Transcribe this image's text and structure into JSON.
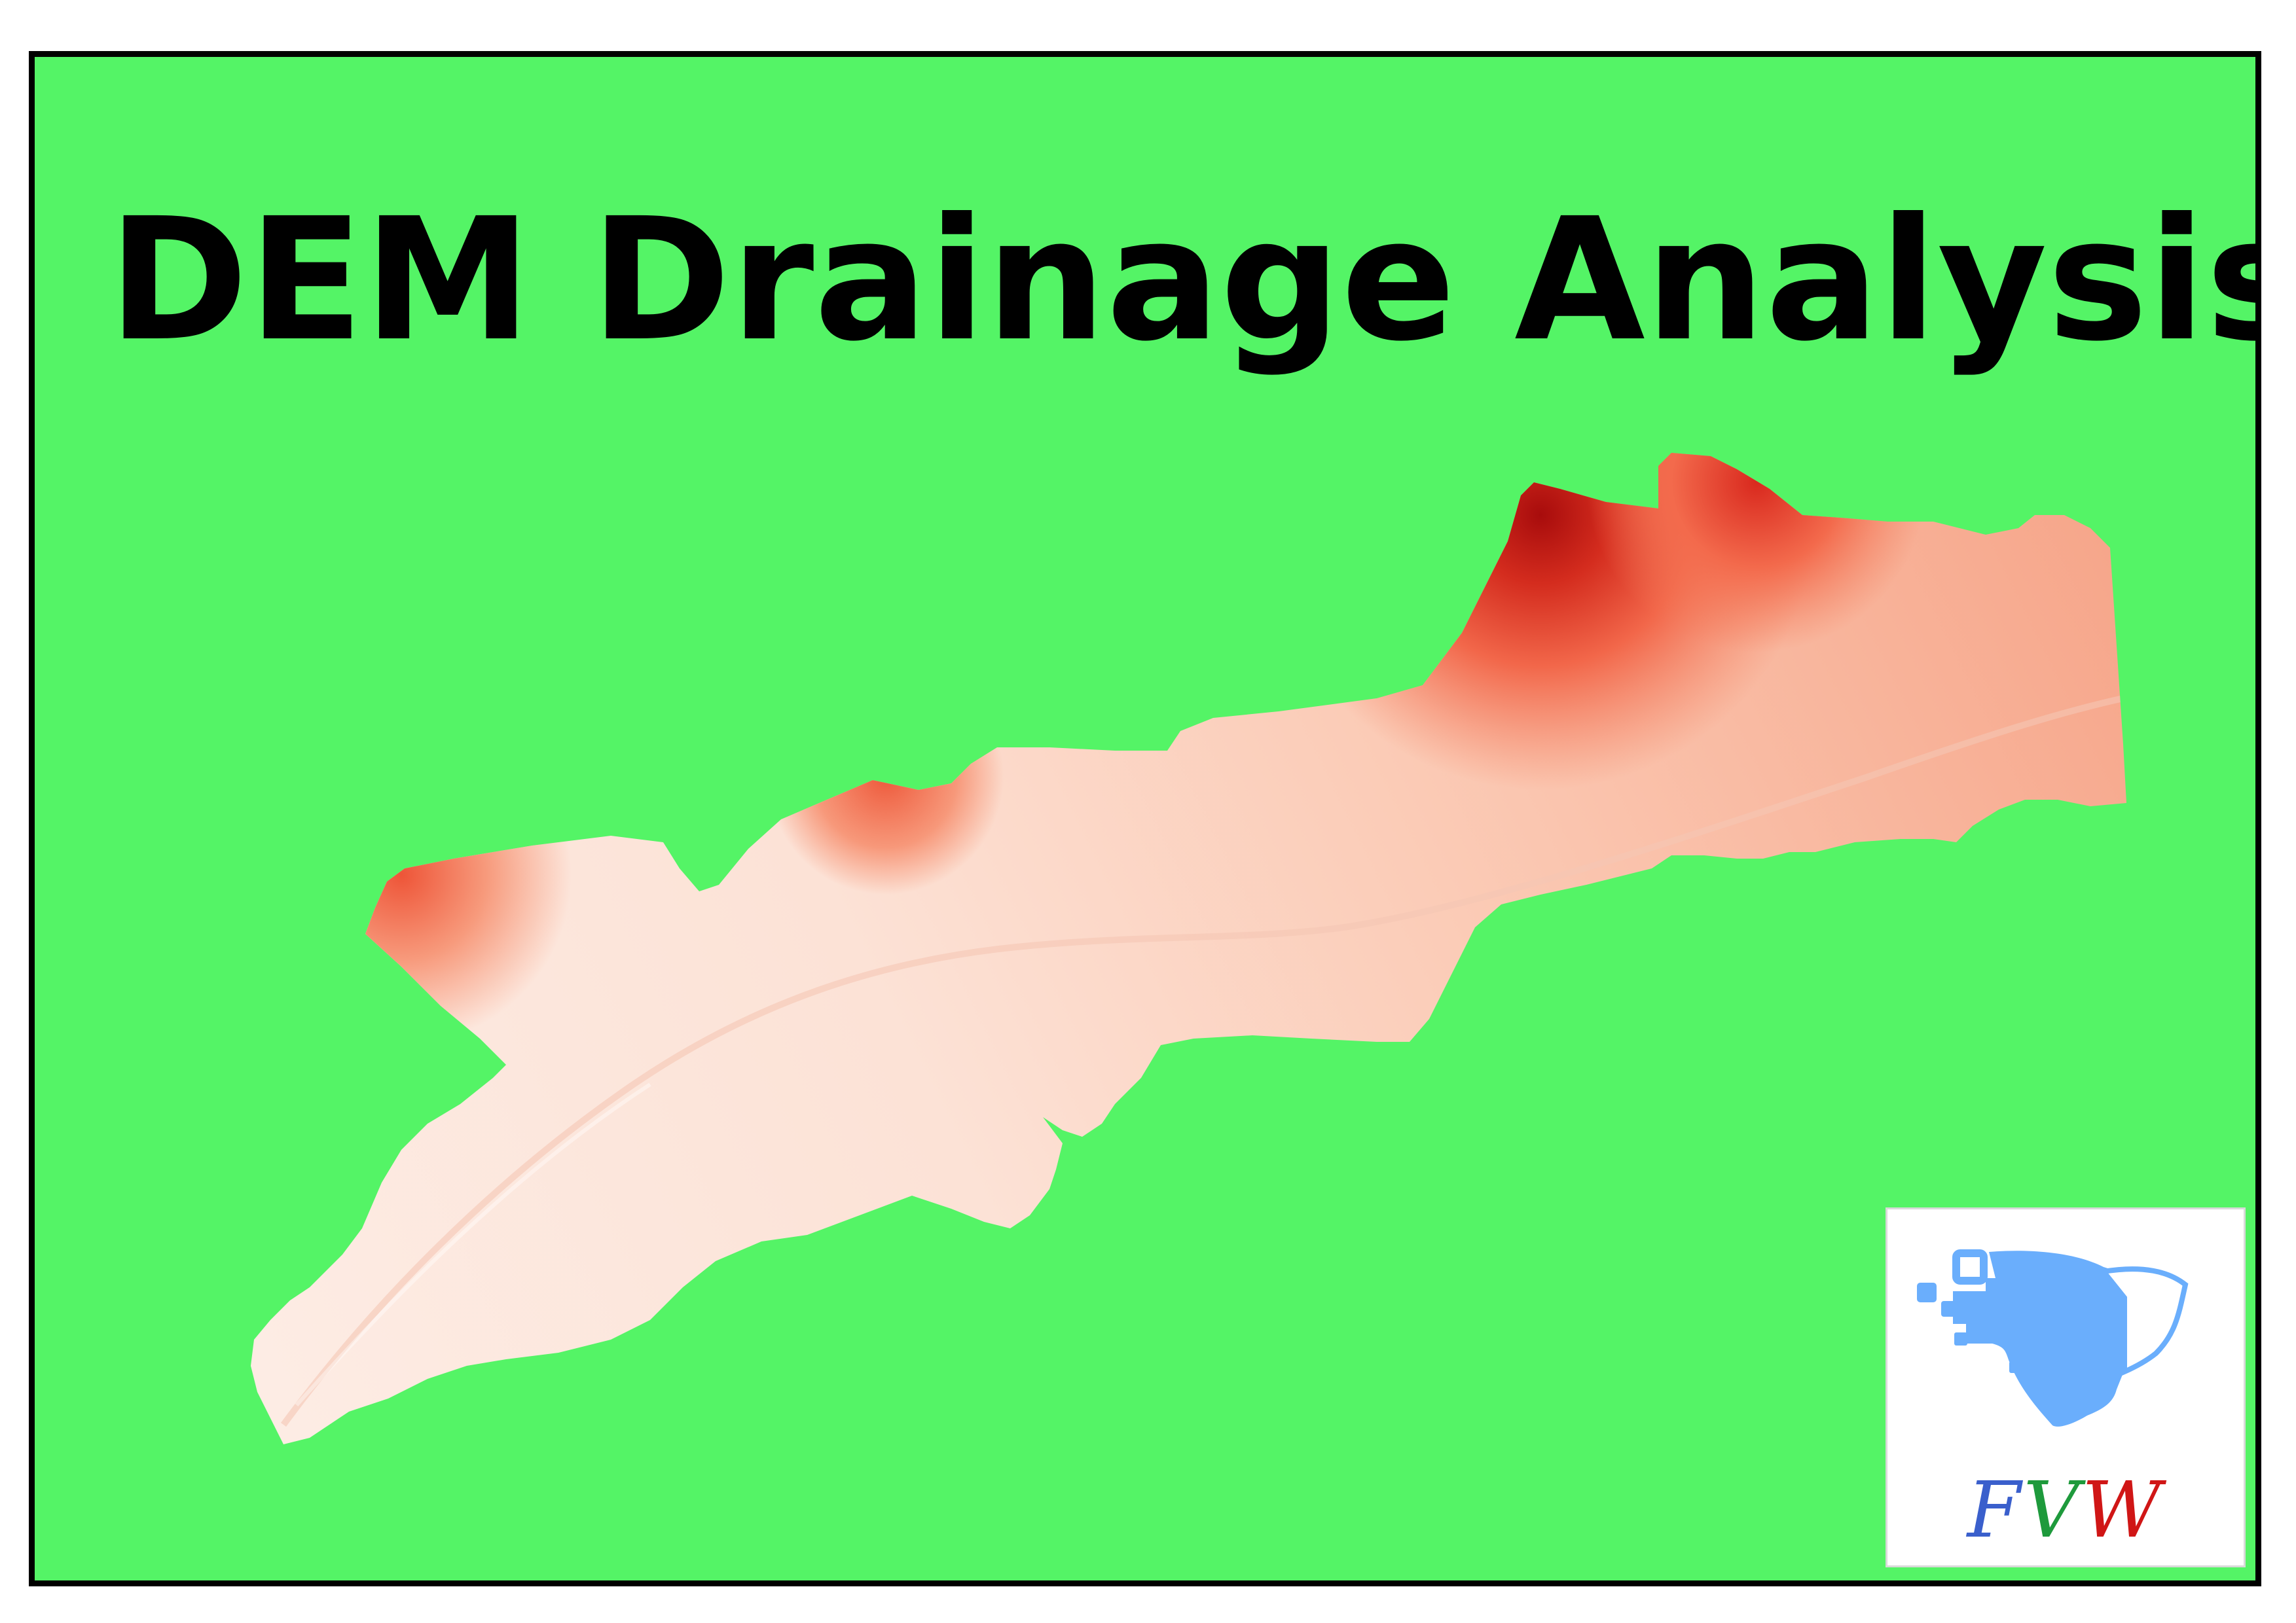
{
  "map": {
    "title": "DEM Drainage Analysis",
    "background_color": "#54f466",
    "frame_color": "#000000",
    "dem_ramp": {
      "low_color": "#fdebe3",
      "mid_color": "#f9a98b",
      "high_color": "#b30d0d"
    }
  },
  "logo": {
    "text": "FVW",
    "letters": [
      "F",
      "V",
      "W"
    ],
    "colors": {
      "F": "#3a5fcc",
      "V": "#1e9a3c",
      "W": "#d01616",
      "mark": "#6aaefc"
    },
    "icon": "fvw-head-logo-icon"
  }
}
